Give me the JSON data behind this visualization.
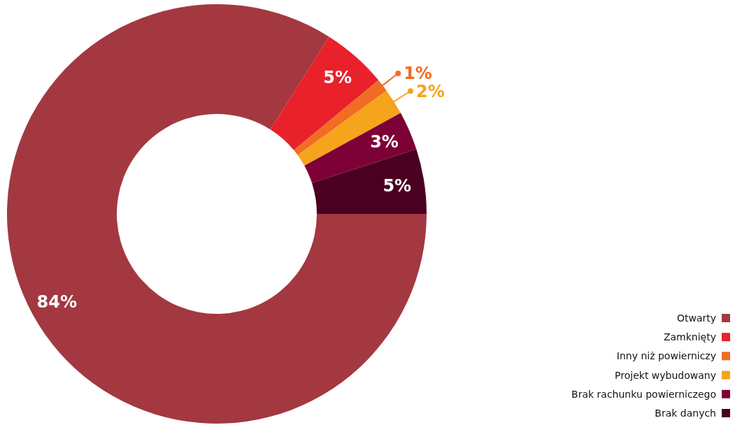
{
  "chart_data": {
    "type": "donut",
    "categories": [
      "Otwarty",
      "Zamknięty",
      "Inny niż powierniczy",
      "Projekt wybudowany",
      "Brak rachunku powierniczego",
      "Brak danych"
    ],
    "values": [
      84,
      5,
      1,
      2,
      3,
      5
    ],
    "colors": [
      "#a33841",
      "#e8212b",
      "#f26c23",
      "#f6a41c",
      "#7d0036",
      "#4a0020"
    ],
    "value_labels": [
      "84%",
      "5%",
      "1%",
      "2%",
      "3%",
      "5%"
    ],
    "legend": "bottom right"
  }
}
